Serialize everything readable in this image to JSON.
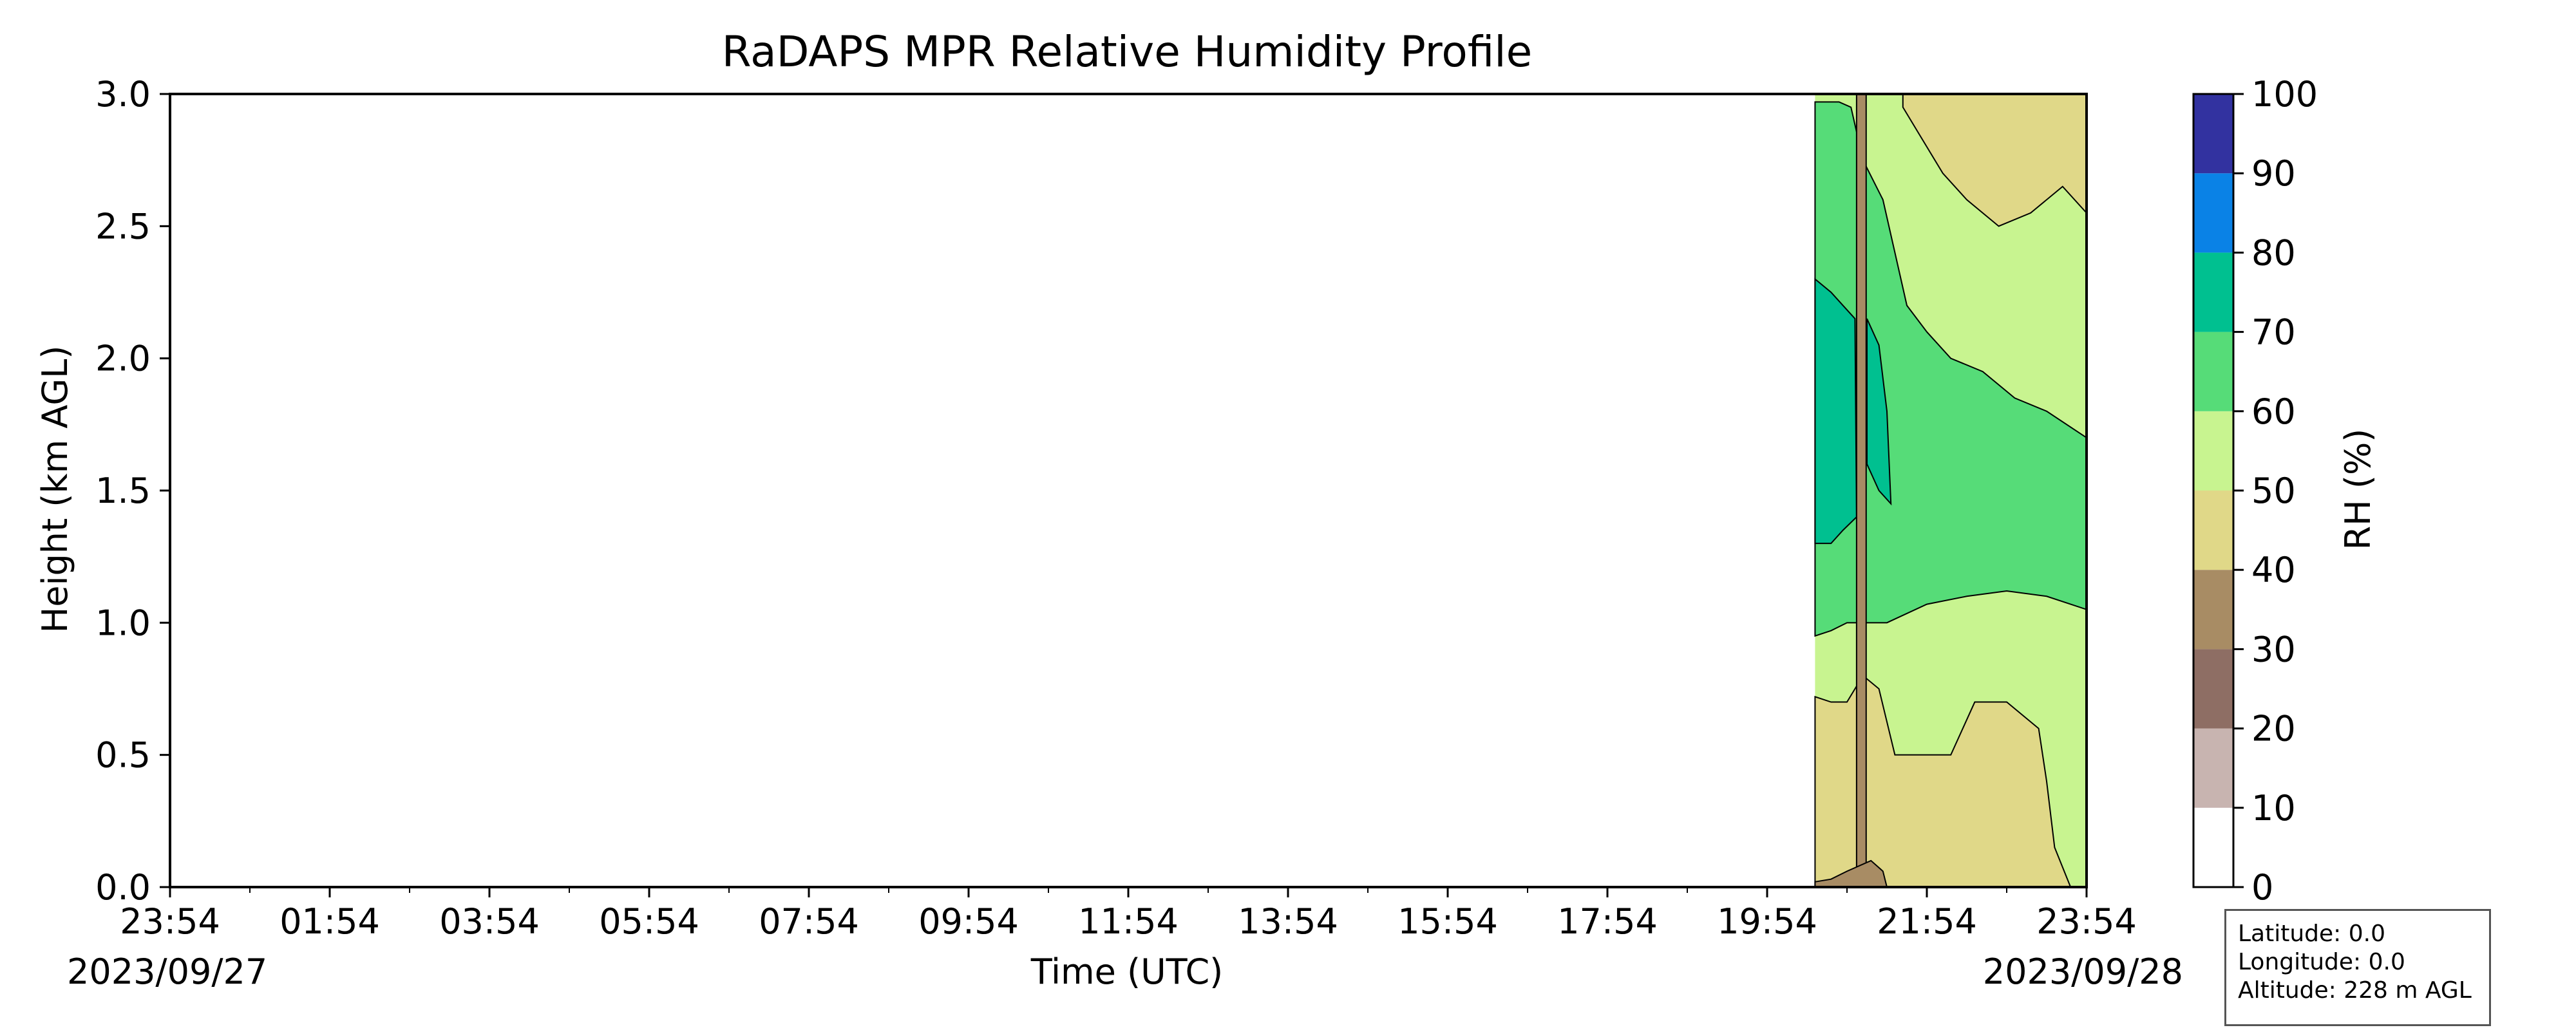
{
  "chart_data": {
    "type": "heatmap",
    "title": "RaDAPS MPR Relative Humidity Profile",
    "xlabel": "Time (UTC)",
    "ylabel": "Height (km AGL)",
    "x_ticks": [
      "23:54",
      "01:54",
      "03:54",
      "05:54",
      "07:54",
      "09:54",
      "11:54",
      "13:54",
      "15:54",
      "17:54",
      "19:54",
      "21:54",
      "23:54"
    ],
    "x_range_hours": [
      0,
      24
    ],
    "start_date": "2023/09/27",
    "end_date": "2023/09/28",
    "y_ticks": [
      "0.0",
      "0.5",
      "1.0",
      "1.5",
      "2.0",
      "2.5",
      "3.0"
    ],
    "ylim": [
      0,
      3
    ],
    "data_start_time": "20:30",
    "data_end_time": "23:54",
    "colorbar": {
      "label": "RH (%)",
      "levels": [
        0,
        10,
        20,
        30,
        40,
        50,
        60,
        70,
        80,
        90,
        100
      ],
      "colors": [
        "#ffffff",
        "#c8b4b0",
        "#8e6e64",
        "#a88c64",
        "#e0d888",
        "#c8f490",
        "#56dc78",
        "#00c090",
        "#0a82e6",
        "#3232a0"
      ]
    },
    "layers": [
      {
        "rh_range": [
          30,
          40
        ],
        "color": "#a88c64",
        "region": "thin vertical column near 21:05 from 0 to 3.0 km; near-surface layer 20:30–21:25 below ~0.1 km"
      },
      {
        "rh_range": [
          40,
          50
        ],
        "color": "#e0d888",
        "region": "0–0.7 km from 20:30 to ~22:00, 0–0.6 km to ~23:30; above ~2.4 km after 21:40"
      },
      {
        "rh_range": [
          50,
          60
        ],
        "color": "#c8f490",
        "region": "~0.7–1.0 km band; 1.1–2.9 km after 21:30 in upper right"
      },
      {
        "rh_range": [
          60,
          70
        ],
        "color": "#56dc78",
        "region": "~1.0–2.9 km from 20:30 to 21:40, ~1.1–1.7 km later"
      },
      {
        "rh_range": [
          70,
          80
        ],
        "color": "#00c090",
        "region": "~1.4–2.3 km from 20:30 to ~21:10"
      }
    ]
  },
  "info": {
    "latitude": "Latitude: 0.0",
    "longitude": "Longitude: 0.0",
    "altitude": "Altitude: 228 m AGL"
  }
}
